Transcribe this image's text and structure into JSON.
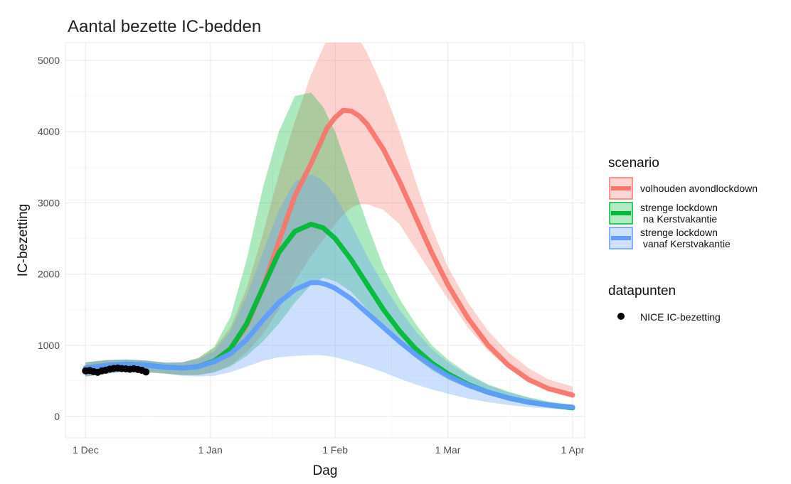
{
  "chart_data": {
    "type": "line",
    "title": "Aantal bezette IC-bedden",
    "xlabel": "Dag",
    "ylabel": "IC-bezetting",
    "x_unit": "days since 1 Dec",
    "xlim": [
      -5,
      124
    ],
    "ylim": [
      -300,
      5250
    ],
    "grid": true,
    "x_ticks": [
      {
        "label": "1 Dec",
        "value": 0
      },
      {
        "label": "1 Jan",
        "value": 31
      },
      {
        "label": "1 Feb",
        "value": 62
      },
      {
        "label": "1 Mar",
        "value": 90
      },
      {
        "label": "1 Apr",
        "value": 121
      }
    ],
    "y_ticks": [
      {
        "label": "0",
        "value": 0
      },
      {
        "label": "1000",
        "value": 1000
      },
      {
        "label": "2000",
        "value": 2000
      },
      {
        "label": "3000",
        "value": 3000
      },
      {
        "label": "4000",
        "value": 4000
      },
      {
        "label": "5000",
        "value": 5000
      }
    ],
    "series": [
      {
        "name": "volhouden avondlockdown",
        "color": "#f8766d",
        "x": [
          0,
          5,
          10,
          15,
          20,
          24,
          28,
          32,
          36,
          40,
          44,
          48,
          52,
          56,
          60,
          62,
          64,
          66,
          68,
          70,
          74,
          78,
          82,
          86,
          90,
          95,
          100,
          105,
          110,
          115,
          121
        ],
        "mean": [
          680,
          715,
          735,
          720,
          690,
          680,
          700,
          780,
          950,
          1280,
          1800,
          2450,
          3100,
          3550,
          4050,
          4200,
          4300,
          4290,
          4220,
          4100,
          3750,
          3300,
          2800,
          2300,
          1850,
          1380,
          1000,
          720,
          520,
          390,
          300
        ],
        "lower": [
          560,
          600,
          630,
          620,
          600,
          580,
          580,
          620,
          720,
          900,
          1150,
          1500,
          1900,
          2250,
          2550,
          2700,
          2830,
          2930,
          2980,
          2980,
          2900,
          2700,
          2350,
          2000,
          1650,
          1250,
          920,
          680,
          490,
          360,
          270
        ],
        "upper": [
          760,
          790,
          800,
          785,
          755,
          760,
          820,
          960,
          1250,
          1800,
          2550,
          3400,
          4150,
          4800,
          5300,
          5400,
          5450,
          5400,
          5300,
          5100,
          4600,
          4000,
          3300,
          2650,
          2100,
          1600,
          1200,
          900,
          680,
          520,
          420
        ]
      },
      {
        "name": "strenge lockdown\n na Kerstvakantie",
        "color": "#00ba38",
        "x": [
          0,
          5,
          10,
          15,
          20,
          24,
          28,
          32,
          36,
          40,
          44,
          48,
          52,
          56,
          59,
          62,
          66,
          70,
          74,
          78,
          82,
          86,
          90,
          95,
          100,
          105,
          110,
          115,
          121
        ],
        "mean": [
          680,
          715,
          735,
          720,
          690,
          680,
          700,
          780,
          950,
          1300,
          1800,
          2300,
          2600,
          2700,
          2650,
          2500,
          2200,
          1850,
          1500,
          1200,
          950,
          750,
          600,
          450,
          340,
          260,
          200,
          160,
          120
        ],
        "lower": [
          560,
          600,
          630,
          620,
          600,
          580,
          580,
          620,
          700,
          850,
          1050,
          1300,
          1600,
          1850,
          1950,
          1900,
          1750,
          1500,
          1250,
          1020,
          820,
          650,
          520,
          400,
          300,
          230,
          180,
          140,
          100
        ],
        "upper": [
          760,
          790,
          800,
          785,
          755,
          760,
          820,
          980,
          1400,
          2200,
          3200,
          4000,
          4500,
          4550,
          4350,
          4000,
          3350,
          2700,
          2100,
          1650,
          1300,
          1000,
          800,
          600,
          450,
          350,
          270,
          210,
          160
        ]
      },
      {
        "name": "strenge lockdown\n vanaf Kerstvakantie",
        "color": "#619cff",
        "x": [
          0,
          5,
          10,
          15,
          20,
          24,
          28,
          32,
          36,
          40,
          44,
          48,
          52,
          56,
          58,
          60,
          62,
          66,
          70,
          74,
          78,
          82,
          86,
          90,
          95,
          100,
          105,
          110,
          115,
          121
        ],
        "mean": [
          680,
          715,
          735,
          720,
          690,
          680,
          700,
          770,
          880,
          1080,
          1350,
          1600,
          1780,
          1880,
          1880,
          1850,
          1800,
          1650,
          1450,
          1250,
          1050,
          870,
          710,
          570,
          440,
          340,
          260,
          200,
          160,
          130
        ],
        "lower": [
          560,
          600,
          630,
          620,
          600,
          570,
          560,
          570,
          620,
          700,
          780,
          830,
          850,
          860,
          860,
          850,
          830,
          770,
          700,
          620,
          530,
          450,
          380,
          320,
          250,
          200,
          160,
          130,
          110,
          90
        ],
        "upper": [
          760,
          790,
          800,
          785,
          755,
          760,
          800,
          920,
          1200,
          1700,
          2300,
          2900,
          3300,
          3400,
          3350,
          3250,
          3100,
          2700,
          2250,
          1850,
          1500,
          1200,
          950,
          760,
          580,
          440,
          340,
          260,
          200,
          160
        ]
      }
    ],
    "points": {
      "name": "NICE IC-bezetting",
      "color": "#000000",
      "x": [
        0,
        1,
        2,
        3,
        4,
        5,
        6,
        7,
        8,
        9,
        10,
        11,
        12,
        13,
        14,
        15
      ],
      "y": [
        640,
        645,
        630,
        620,
        640,
        650,
        665,
        675,
        680,
        672,
        668,
        662,
        670,
        660,
        648,
        625
      ]
    },
    "legend": {
      "position": "right",
      "scenario_title": "scenario",
      "datapoints_title": "datapunten",
      "datapoints_label": "NICE IC-bezetting"
    }
  }
}
